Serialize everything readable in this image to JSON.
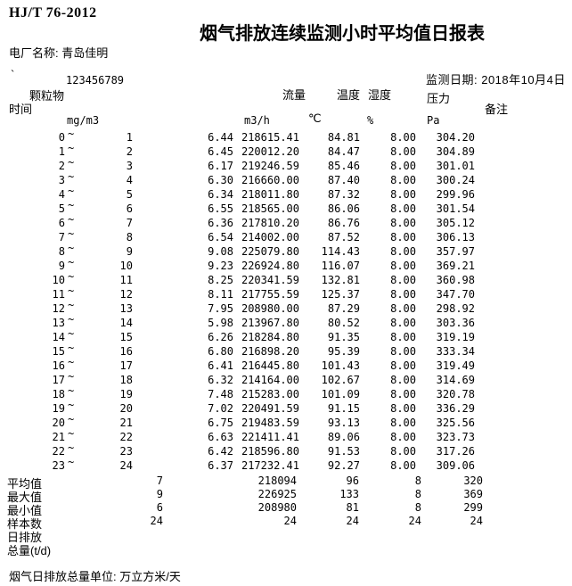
{
  "page": {
    "standard": "HJ/T 76-2012",
    "title": "烟气排放连续监测小时平均值日报表",
    "plant": "电厂名称: 青岛佳明",
    "mark": "`",
    "serial": "123456789",
    "date": "监测日期: 2018年10月4日"
  },
  "columns": {
    "time": "时间",
    "dust": "颗粒物",
    "flow": "流量",
    "temp": "温度",
    "humidity": "湿度",
    "pressure": "压力",
    "note": "备注"
  },
  "units": {
    "dust": "mg/m3",
    "flow": "m3/h",
    "temp": "℃",
    "humidity": "%",
    "pressure": "Pa"
  },
  "tilde": "~",
  "rows": [
    {
      "from": "0",
      "to": "1",
      "dust": "6.44",
      "flow": "218615.41",
      "temp": "84.81",
      "humidity": "8.00",
      "pressure": "304.20"
    },
    {
      "from": "1",
      "to": "2",
      "dust": "6.45",
      "flow": "220012.20",
      "temp": "84.47",
      "humidity": "8.00",
      "pressure": "304.89"
    },
    {
      "from": "2",
      "to": "3",
      "dust": "6.17",
      "flow": "219246.59",
      "temp": "85.46",
      "humidity": "8.00",
      "pressure": "301.01"
    },
    {
      "from": "3",
      "to": "4",
      "dust": "6.30",
      "flow": "216660.00",
      "temp": "87.40",
      "humidity": "8.00",
      "pressure": "300.24"
    },
    {
      "from": "4",
      "to": "5",
      "dust": "6.34",
      "flow": "218011.80",
      "temp": "87.32",
      "humidity": "8.00",
      "pressure": "299.96"
    },
    {
      "from": "5",
      "to": "6",
      "dust": "6.55",
      "flow": "218565.00",
      "temp": "86.06",
      "humidity": "8.00",
      "pressure": "301.54"
    },
    {
      "from": "6",
      "to": "7",
      "dust": "6.36",
      "flow": "217810.20",
      "temp": "86.76",
      "humidity": "8.00",
      "pressure": "305.12"
    },
    {
      "from": "7",
      "to": "8",
      "dust": "6.54",
      "flow": "214002.00",
      "temp": "87.52",
      "humidity": "8.00",
      "pressure": "306.13"
    },
    {
      "from": "8",
      "to": "9",
      "dust": "9.08",
      "flow": "225079.80",
      "temp": "114.43",
      "humidity": "8.00",
      "pressure": "357.97"
    },
    {
      "from": "9",
      "to": "10",
      "dust": "9.23",
      "flow": "226924.80",
      "temp": "116.07",
      "humidity": "8.00",
      "pressure": "369.21"
    },
    {
      "from": "10",
      "to": "11",
      "dust": "8.25",
      "flow": "220341.59",
      "temp": "132.81",
      "humidity": "8.00",
      "pressure": "360.98"
    },
    {
      "from": "11",
      "to": "12",
      "dust": "8.11",
      "flow": "217755.59",
      "temp": "125.37",
      "humidity": "8.00",
      "pressure": "347.70"
    },
    {
      "from": "12",
      "to": "13",
      "dust": "7.95",
      "flow": "208980.00",
      "temp": "87.29",
      "humidity": "8.00",
      "pressure": "298.92"
    },
    {
      "from": "13",
      "to": "14",
      "dust": "5.98",
      "flow": "213967.80",
      "temp": "80.52",
      "humidity": "8.00",
      "pressure": "303.36"
    },
    {
      "from": "14",
      "to": "15",
      "dust": "6.26",
      "flow": "218284.80",
      "temp": "91.35",
      "humidity": "8.00",
      "pressure": "319.19"
    },
    {
      "from": "15",
      "to": "16",
      "dust": "6.80",
      "flow": "216898.20",
      "temp": "95.39",
      "humidity": "8.00",
      "pressure": "333.34"
    },
    {
      "from": "16",
      "to": "17",
      "dust": "6.41",
      "flow": "216445.80",
      "temp": "101.43",
      "humidity": "8.00",
      "pressure": "319.49"
    },
    {
      "from": "17",
      "to": "18",
      "dust": "6.32",
      "flow": "214164.00",
      "temp": "102.67",
      "humidity": "8.00",
      "pressure": "314.69"
    },
    {
      "from": "18",
      "to": "19",
      "dust": "7.48",
      "flow": "215283.00",
      "temp": "101.09",
      "humidity": "8.00",
      "pressure": "320.78"
    },
    {
      "from": "19",
      "to": "20",
      "dust": "7.02",
      "flow": "220491.59",
      "temp": "91.15",
      "humidity": "8.00",
      "pressure": "336.29"
    },
    {
      "from": "20",
      "to": "21",
      "dust": "6.75",
      "flow": "219483.59",
      "temp": "93.13",
      "humidity": "8.00",
      "pressure": "325.56"
    },
    {
      "from": "21",
      "to": "22",
      "dust": "6.63",
      "flow": "221411.41",
      "temp": "89.06",
      "humidity": "8.00",
      "pressure": "323.73"
    },
    {
      "from": "22",
      "to": "23",
      "dust": "6.42",
      "flow": "218596.80",
      "temp": "91.53",
      "humidity": "8.00",
      "pressure": "317.26"
    },
    {
      "from": "23",
      "to": "24",
      "dust": "6.37",
      "flow": "217232.41",
      "temp": "92.27",
      "humidity": "8.00",
      "pressure": "309.06"
    }
  ],
  "summary": [
    {
      "label": "平均值",
      "dust": "7",
      "flow": "218094",
      "temp": "96",
      "humidity": "8",
      "pressure": "320"
    },
    {
      "label": "最大值",
      "dust": "9",
      "flow": "226925",
      "temp": "133",
      "humidity": "8",
      "pressure": "369"
    },
    {
      "label": "最小值",
      "dust": "6",
      "flow": "208980",
      "temp": "81",
      "humidity": "8",
      "pressure": "299"
    },
    {
      "label": "样本数",
      "dust": "24",
      "flow": "24",
      "temp": "24",
      "humidity": "24",
      "pressure": "24"
    }
  ],
  "daily_total": {
    "line1": "日排放",
    "line2": "总量(t/d)"
  },
  "footer": "烟气日排放总量单位: 万立方米/天",
  "colors": {
    "text": "#000000",
    "background": "#ffffff"
  }
}
